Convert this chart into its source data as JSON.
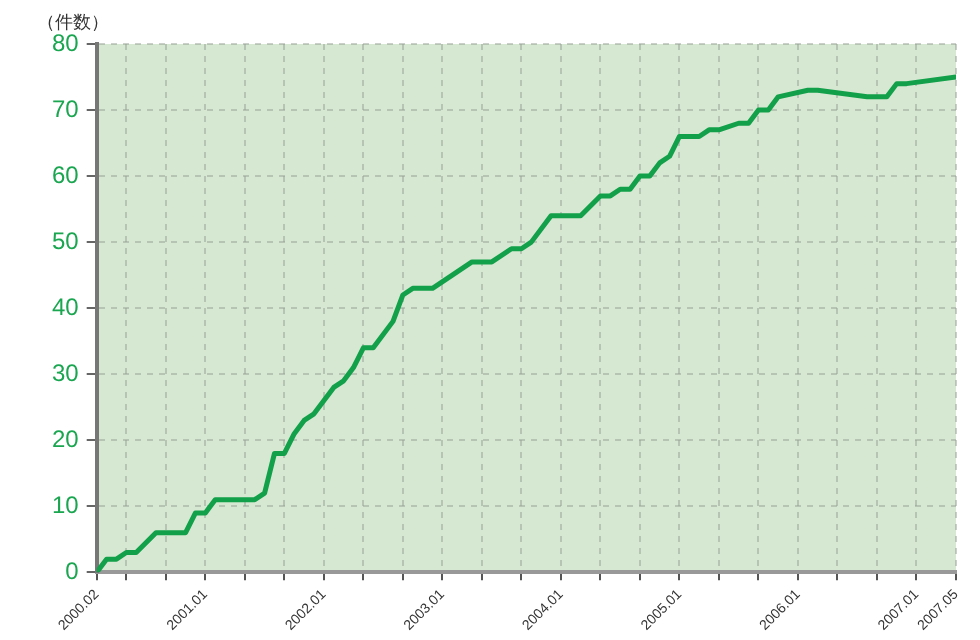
{
  "chart_data": {
    "type": "line",
    "ylabel": "（件数）",
    "x": [
      "2000-02",
      "2000-03",
      "2000-04",
      "2000-05",
      "2000-06",
      "2000-08",
      "2000-11",
      "2000-12",
      "2001-01",
      "2001-02",
      "2001-06",
      "2001-07",
      "2001-08",
      "2001-09",
      "2001-10",
      "2001-11",
      "2001-12",
      "2002-02",
      "2002-03",
      "2002-04",
      "2002-05",
      "2002-06",
      "2002-08",
      "2002-09",
      "2002-10",
      "2002-12",
      "2003-02",
      "2003-04",
      "2003-06",
      "2003-08",
      "2003-09",
      "2003-10",
      "2003-12",
      "2004-03",
      "2004-05",
      "2004-06",
      "2004-07",
      "2004-08",
      "2004-09",
      "2004-10",
      "2004-11",
      "2004-12",
      "2005-01",
      "2005-02",
      "2005-03",
      "2005-04",
      "2005-05",
      "2005-07",
      "2005-08",
      "2005-09",
      "2005-10",
      "2005-11",
      "2006-02",
      "2006-03",
      "2006-08",
      "2006-10",
      "2006-11",
      "2006-12",
      "2007-05"
    ],
    "series": [
      {
        "color": "#12a04a",
        "values": [
          0,
          2,
          2,
          3,
          3,
          6,
          6,
          9,
          9,
          11,
          11,
          12,
          18,
          18,
          21,
          23,
          24,
          28,
          29,
          31,
          34,
          34,
          38,
          42,
          43,
          43,
          45,
          47,
          47,
          49,
          49,
          50,
          54,
          54,
          57,
          57,
          58,
          58,
          60,
          60,
          62,
          63,
          66,
          66,
          66,
          67,
          67,
          68,
          68,
          70,
          70,
          72,
          73,
          73,
          72,
          72,
          74,
          74,
          75
        ]
      }
    ],
    "xlim": [
      "2000-02",
      "2007-05"
    ],
    "ylim": [
      0,
      80
    ],
    "xticks": [
      {
        "value": "2000-02",
        "label": "2000.02"
      },
      {
        "value": "2000-05",
        "label": null
      },
      {
        "value": "2000-09",
        "label": null
      },
      {
        "value": "2001-01",
        "label": "2001.01"
      },
      {
        "value": "2001-05",
        "label": null
      },
      {
        "value": "2001-09",
        "label": null
      },
      {
        "value": "2002-01",
        "label": "2002.01"
      },
      {
        "value": "2002-05",
        "label": null
      },
      {
        "value": "2002-09",
        "label": null
      },
      {
        "value": "2003-01",
        "label": "2003.01"
      },
      {
        "value": "2003-05",
        "label": null
      },
      {
        "value": "2003-09",
        "label": null
      },
      {
        "value": "2004-01",
        "label": "2004.01"
      },
      {
        "value": "2004-05",
        "label": null
      },
      {
        "value": "2004-09",
        "label": null
      },
      {
        "value": "2005-01",
        "label": "2005.01"
      },
      {
        "value": "2005-05",
        "label": null
      },
      {
        "value": "2005-09",
        "label": null
      },
      {
        "value": "2006-01",
        "label": "2006.01"
      },
      {
        "value": "2006-05",
        "label": null
      },
      {
        "value": "2006-09",
        "label": null
      },
      {
        "value": "2007-01",
        "label": "2007.01"
      },
      {
        "value": "2007-05",
        "label": "2007.05"
      }
    ],
    "yticks": [
      0,
      10,
      20,
      30,
      40,
      50,
      60,
      70,
      80
    ],
    "grid": true,
    "legend": false,
    "marker": "none",
    "line_style": "solid"
  }
}
